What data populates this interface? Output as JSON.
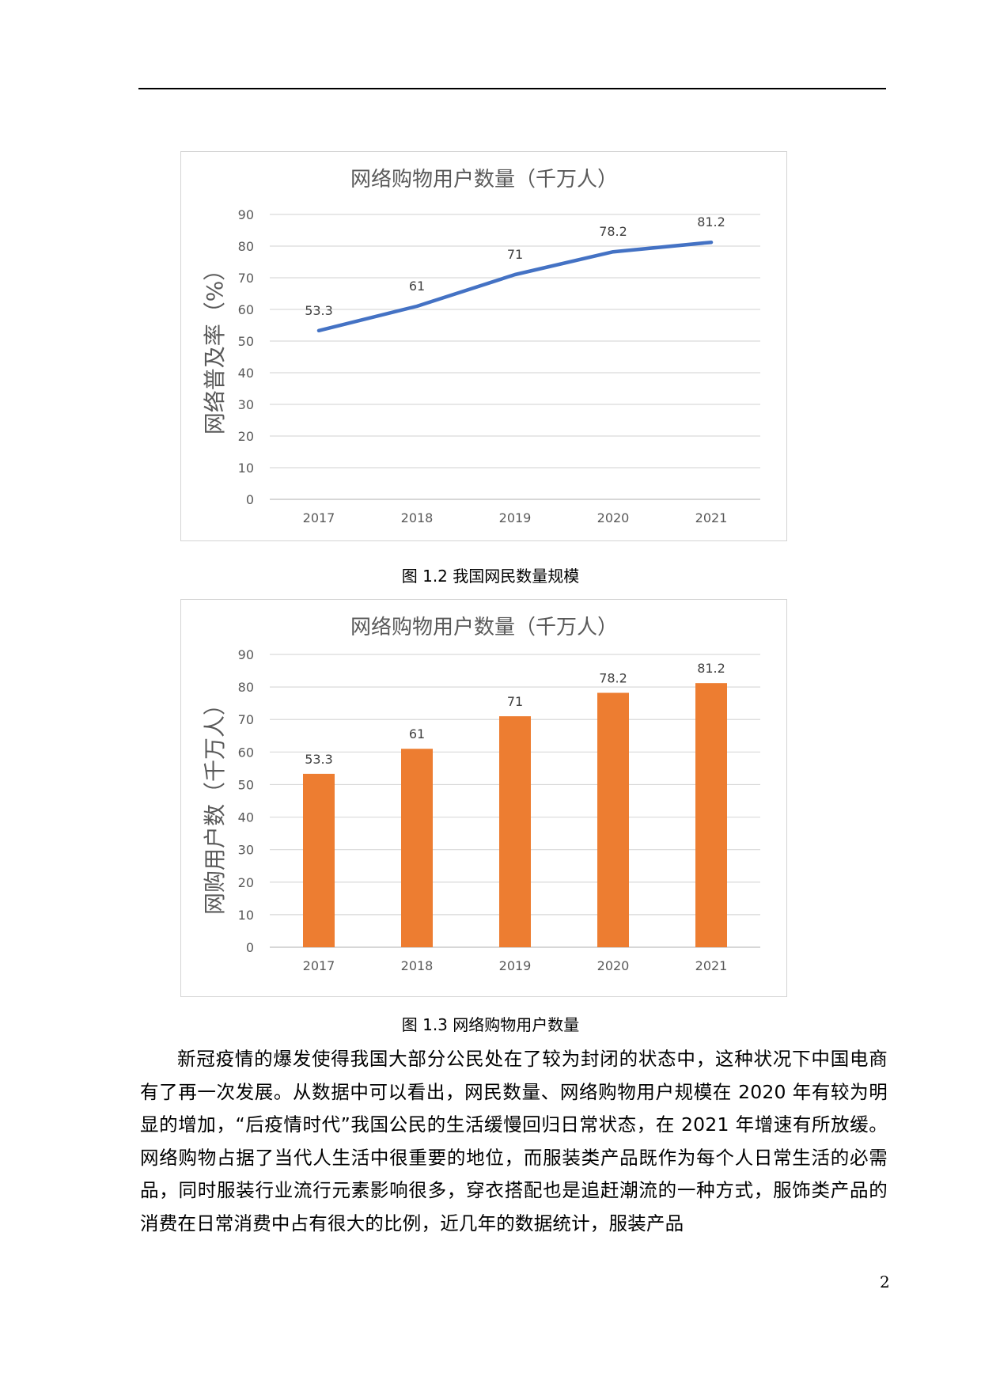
{
  "figures": [
    {
      "caption": "图 1.2 我国网民数量规模",
      "chart_data": {
        "type": "line",
        "title": "网络购物用户数量（千万人）",
        "xlabel": "",
        "ylabel": "网络普及率（%）",
        "categories": [
          "2017",
          "2018",
          "2019",
          "2020",
          "2021"
        ],
        "values": [
          53.3,
          61,
          71,
          78.2,
          81.2
        ],
        "data_labels": [
          "53.3",
          "61",
          "71",
          "78.2",
          "81.2"
        ],
        "ylim": [
          0,
          90
        ],
        "yticks": [
          "0",
          "10",
          "20",
          "30",
          "40",
          "50",
          "60",
          "70",
          "80",
          "90"
        ],
        "grid": true,
        "color": "#4472c4"
      }
    },
    {
      "caption": "图 1.3 网络购物用户数量",
      "chart_data": {
        "type": "bar",
        "title": "网络购物用户数量（千万人）",
        "xlabel": "",
        "ylabel": "网购用户数（千万人）",
        "categories": [
          "2017",
          "2018",
          "2019",
          "2020",
          "2021"
        ],
        "values": [
          53.3,
          61,
          71,
          78.2,
          81.2
        ],
        "data_labels": [
          "53.3",
          "61",
          "71",
          "78.2",
          "81.2"
        ],
        "ylim": [
          0,
          90
        ],
        "yticks": [
          "0",
          "10",
          "20",
          "30",
          "40",
          "50",
          "60",
          "70",
          "80",
          "90"
        ],
        "grid": true,
        "color": "#ed7d31"
      }
    }
  ],
  "body_paragraph": "新冠疫情的爆发使得我国大部分公民处在了较为封闭的状态中，这种状况下中国电商有了再一次发展。从数据中可以看出，网民数量、网络购物用户规模在 2020 年有较为明显的增加，“后疫情时代”我国公民的生活缓慢回归日常状态，在 2021 年增速有所放缓。网络购物占据了当代人生活中很重要的地位，而服装类产品既作为每个人日常生活的必需品，同时服装行业流行元素影响很多，穿衣搭配也是追赶潮流的一种方式，服饰类产品的消费在日常消费中占有很大的比例，近几年的数据统计，服装产品",
  "page_number": "2"
}
